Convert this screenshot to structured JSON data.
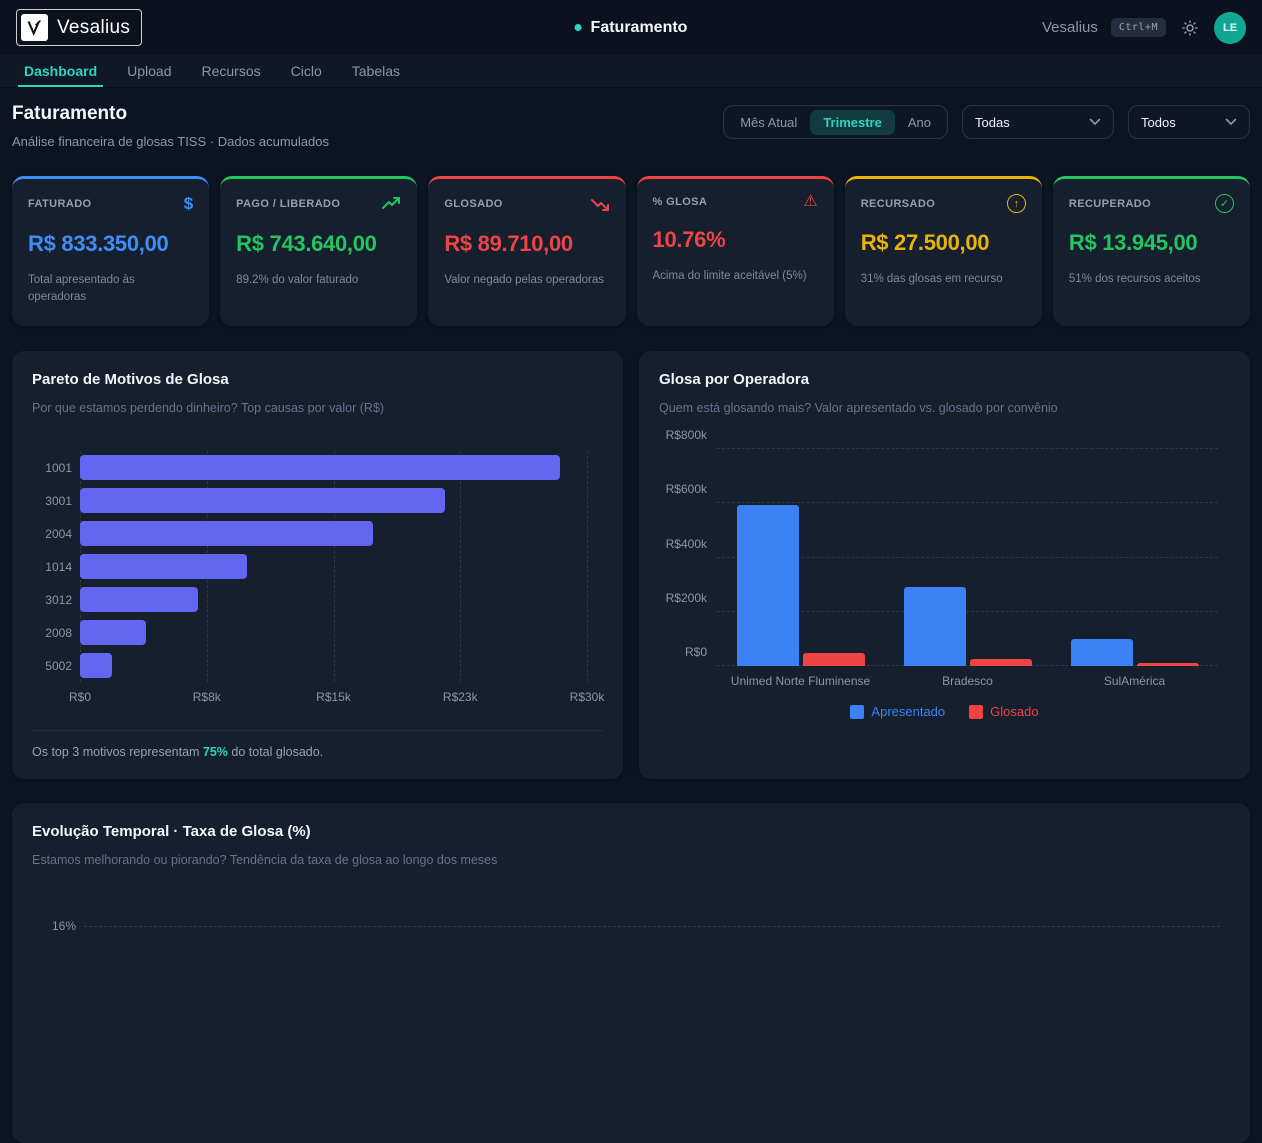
{
  "topbar": {
    "logo_text": "Vesalius",
    "page_indicator": "Faturamento",
    "user_label": "Vesalius",
    "shortcut_badge": "Ctrl+M",
    "avatar_initials": "LE"
  },
  "nav": {
    "tabs": [
      {
        "label": "Dashboard",
        "active": true
      },
      {
        "label": "Upload",
        "active": false
      },
      {
        "label": "Recursos",
        "active": false
      },
      {
        "label": "Ciclo",
        "active": false
      },
      {
        "label": "Tabelas",
        "active": false
      }
    ]
  },
  "header": {
    "title": "Faturamento",
    "subtitle": "Análise financeira de glosas TISS · Dados acumulados",
    "period_options": [
      "Mês Atual",
      "Trimestre",
      "Ano"
    ],
    "period_selected": "Trimestre",
    "filter_operadora_value": "Todas",
    "filter_status_value": "Todos"
  },
  "colors": {
    "accent_teal": "#2dd4bf",
    "blue": "#3f8ef6",
    "green": "#22c55e",
    "red": "#ef4444",
    "yellow": "#eab308",
    "purple": "#6366f1"
  },
  "kpis": [
    {
      "label": "FATURADO",
      "icon": "dollar-icon",
      "value": "R$ 833.350,00",
      "desc": "Total apresentado às operadoras",
      "color": "#3f8ef6"
    },
    {
      "label": "PAGO / LIBERADO",
      "icon": "trend-up-icon",
      "value": "R$ 743.640,00",
      "desc": "89.2% do valor faturado",
      "color": "#22c55e"
    },
    {
      "label": "GLOSADO",
      "icon": "trend-down-icon",
      "value": "R$ 89.710,00",
      "desc": "Valor negado pelas operadoras",
      "color": "#ef4444"
    },
    {
      "label": "% GLOSA",
      "icon": "warning-triangle-icon",
      "value": "10.76%",
      "desc": "Acima do limite aceitável (5%)",
      "color": "#ef4444"
    },
    {
      "label": "RECURSADO",
      "icon": "arrow-up-circle-icon",
      "value": "R$ 27.500,00",
      "desc": "31% das glosas em recurso",
      "color": "#eab308"
    },
    {
      "label": "RECUPERADO",
      "icon": "check-circle-icon",
      "value": "R$ 13.945,00",
      "desc": "51% dos recursos aceitos",
      "color": "#22c55e"
    }
  ],
  "pareto_card": {
    "title": "Pareto de Motivos de Glosa",
    "subtitle": "Por que estamos perdendo dinheiro? Top causas por valor (R$)",
    "footer_prefix": "Os top 3 motivos representam ",
    "footer_highlight": "75%",
    "footer_suffix": " do total glosado."
  },
  "operadora_card": {
    "title": "Glosa por Operadora",
    "subtitle": "Quem está glosando mais? Valor apresentado vs. glosado por convênio"
  },
  "evolucao_card": {
    "title": "Evolução Temporal · Taxa de Glosa (%)",
    "subtitle": "Estamos melhorando ou piorando? Tendência da taxa de glosa ao longo dos meses",
    "visible_ytick": "16%"
  },
  "chart_data": [
    {
      "type": "bar",
      "orientation": "horizontal",
      "title": "Pareto de Motivos de Glosa",
      "categories": [
        "1001",
        "3001",
        "2004",
        "1014",
        "3012",
        "2008",
        "5002"
      ],
      "values": [
        28400,
        21600,
        17350,
        9900,
        7000,
        3900,
        1900
      ],
      "xlim": [
        0,
        30000
      ],
      "xticks": {
        "labels": [
          "R$0",
          "R$8k",
          "R$15k",
          "R$23k",
          "R$30k"
        ],
        "values": [
          0,
          7500,
          15000,
          22500,
          30000
        ]
      },
      "bar_color": "#6366f1",
      "grid": "vertical-dashed",
      "legend": "none"
    },
    {
      "type": "bar",
      "orientation": "vertical",
      "title": "Glosa por Operadora",
      "categories": [
        "Unimed Norte Fluminense",
        "Bradesco",
        "SulAmérica"
      ],
      "series": [
        {
          "name": "Apresentado",
          "color": "#3b82f6",
          "values": [
            595000,
            290000,
            100000
          ]
        },
        {
          "name": "Glosado",
          "color": "#ef4444",
          "values": [
            48000,
            27000,
            12000
          ]
        }
      ],
      "ylim": [
        0,
        800000
      ],
      "yticks": {
        "labels": [
          "R$0",
          "R$200k",
          "R$400k",
          "R$600k",
          "R$800k"
        ],
        "values": [
          0,
          200000,
          400000,
          600000,
          800000
        ]
      },
      "grid": "horizontal-dashed",
      "legend_position": "bottom"
    },
    {
      "type": "line",
      "title": "Evolução Temporal · Taxa de Glosa (%)",
      "yticks_visible": [
        "16%"
      ],
      "note": "chart area cut off at bottom edge of screenshot; only the 16% gridline is visible"
    }
  ]
}
